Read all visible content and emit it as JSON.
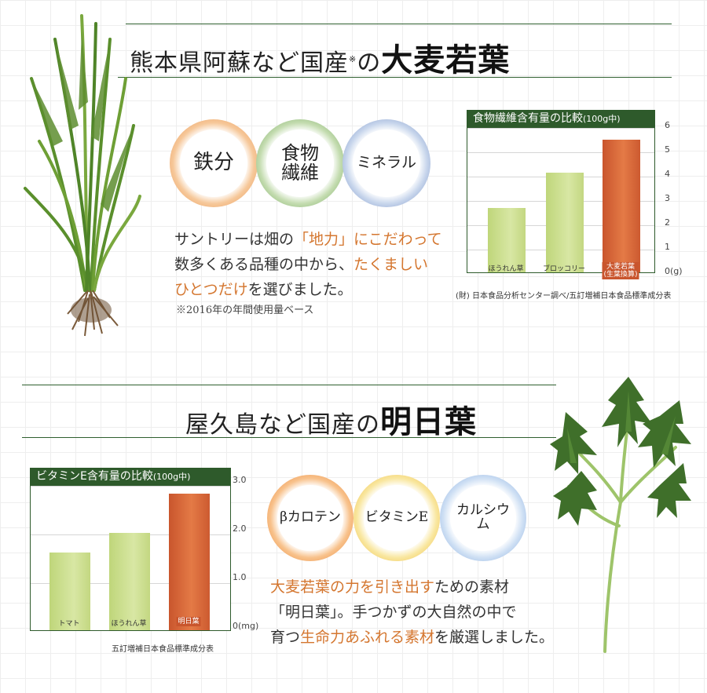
{
  "section1": {
    "heading_main": "熊本県阿蘇など国産",
    "heading_mark": "※",
    "heading_no": "の",
    "heading_big": "大麦若葉",
    "circles": [
      {
        "label_1": "鉄分",
        "label_2": ""
      },
      {
        "label_1": "食物",
        "label_2": "繊維"
      },
      {
        "label_1": "ミネラル",
        "label_2": ""
      }
    ],
    "para": {
      "l1_a": "サントリーは畑の",
      "l1_b": "「地力」にこだわって",
      "l2_a": "数多くある品種の中から、",
      "l2_b": "たくましい",
      "l3_a": "ひとつだけ",
      "l3_b": "を選びました。"
    },
    "note": "※2016年の年間使用量ベース",
    "source": "(財) 日本食品分析センター調べ/五訂増補日本食品標準成分表"
  },
  "section2": {
    "heading_main": "屋久島など国産の",
    "heading_big": "明日葉",
    "circles": [
      {
        "label": "βカロテン"
      },
      {
        "label": "ビタミンE"
      },
      {
        "label": "カルシウム"
      }
    ],
    "para": {
      "l1_a": "大麦若葉の力を引き出す",
      "l1_b": "ための素材",
      "l2": "「明日葉」。手つかずの大自然の中で",
      "l3_a": "育つ",
      "l3_b": "生命力あふれる素材",
      "l3_c": "を厳選しました。"
    },
    "source": "五訂増補日本食品標準成分表"
  },
  "colors": {
    "accent_green": "#2e5a2b",
    "highlight_orange": "#d4762f",
    "bar_green": "#cfe08f",
    "bar_orange": "#d8643a"
  },
  "chart_data": [
    {
      "type": "bar",
      "title": "食物繊維含有量の比較",
      "title_unit": "(100g中)",
      "categories": [
        "ほうれん草",
        "ブロッコリー",
        "大麦若葉\n(生葉換算)"
      ],
      "category_line1": [
        "ほうれん草",
        "ブロッコリー",
        "大麦若葉"
      ],
      "category_line2": [
        "",
        "",
        "(生葉換算)"
      ],
      "values": [
        2.65,
        4.1,
        5.45
      ],
      "ylim": [
        0,
        6
      ],
      "yticks": [
        "6",
        "5",
        "4",
        "3",
        "2",
        "1",
        "0(g)"
      ],
      "unit": "g",
      "grid": true
    },
    {
      "type": "bar",
      "title": "ビタミンE含有量の比較",
      "title_unit": "(100g中)",
      "categories": [
        "トマト",
        "ほうれん草",
        "明日葉"
      ],
      "values": [
        1.6,
        2.0,
        2.8
      ],
      "ylim": [
        0,
        3.0
      ],
      "yticks": [
        "3.0",
        "2.0",
        "1.0",
        "0(mg)"
      ],
      "unit": "mg",
      "grid": true
    }
  ]
}
